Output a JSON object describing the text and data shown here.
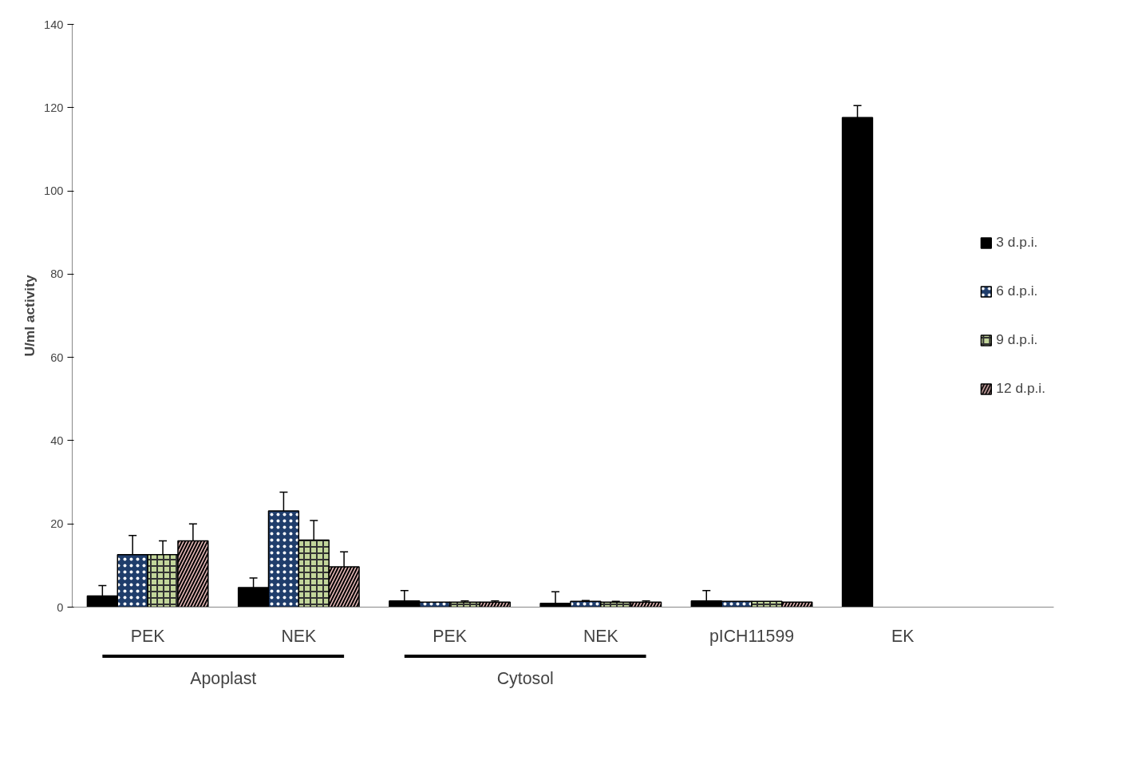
{
  "chart_data": {
    "type": "bar",
    "ylabel": "U/ml activity",
    "categories": [
      "PEK",
      "NEK",
      "PEK",
      "NEK",
      "pICH11599",
      "EK"
    ],
    "series": [
      {
        "name": "3 d.p.i.",
        "color": "#000000",
        "values": [
          2.7,
          4.7,
          1.5,
          0.9,
          1.5,
          117.6
        ],
        "errors": [
          2.5,
          2.3,
          2.5,
          2.8,
          2.5,
          2.9
        ]
      },
      {
        "name": "6 d.p.i.",
        "color": "#1f3d6b",
        "values": [
          12.6,
          23.1,
          1.2,
          1.4,
          1.4,
          null
        ],
        "errors": [
          4.6,
          4.5,
          null,
          0.2,
          null,
          null
        ]
      },
      {
        "name": "9 d.p.i.",
        "color": "#c3d69b",
        "values": [
          12.6,
          16.1,
          1.2,
          1.2,
          1.4,
          null
        ],
        "errors": [
          3.3,
          4.7,
          0.3,
          0.2,
          null,
          null
        ]
      },
      {
        "name": "12 d.p.i.",
        "color": "#e6b9b8",
        "values": [
          15.9,
          9.7,
          1.2,
          1.2,
          1.2,
          null
        ],
        "errors": [
          4.1,
          3.6,
          0.3,
          0.3,
          null,
          null
        ]
      }
    ],
    "ylim": [
      0,
      140
    ],
    "yticks": [
      0,
      20,
      40,
      60,
      80,
      100,
      120,
      140
    ],
    "annotations": [
      "Apoplast",
      "Cytosol"
    ],
    "legend": "right",
    "grid": false
  }
}
